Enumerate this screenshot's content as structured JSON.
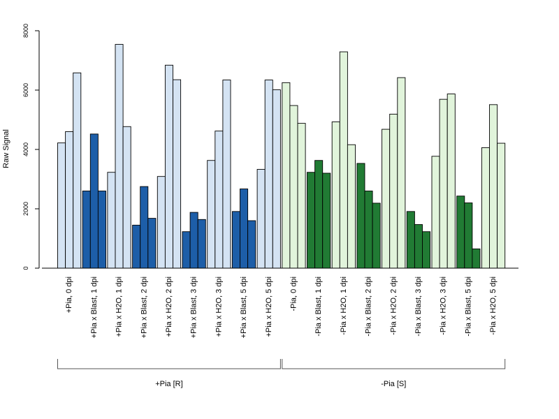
{
  "chart_data": {
    "type": "bar",
    "ylabel": "Raw Signal",
    "xlabel": "",
    "ylim": [
      0,
      8000
    ],
    "yticks": [
      0,
      2000,
      4000,
      6000,
      8000
    ],
    "ytick_labels": [
      "0",
      "2000",
      "4000",
      "6000",
      "8000"
    ],
    "grid": false,
    "legend": "none",
    "colors": {
      "pia_r_h2o": "#d4e3f3",
      "pia_r_blast": "#1d5ea8",
      "pia_s_h2o": "#e1f4db",
      "pia_s_blast": "#217b34",
      "stroke": "#000000"
    },
    "categories": [
      "+Pia, 0 dpi",
      "+Pia x Blast, 1 dpi",
      "+Pia x H2O, 1 dpi",
      "+Pia x Blast, 2 dpi",
      "+Pia x H2O, 2 dpi",
      "+Pia x Blast, 3 dpi",
      "+Pia x H2O, 3 dpi",
      "+Pia x Blast, 5 dpi",
      "+Pia x H2O, 5 dpi",
      "-Pia, 0 dpi",
      "-Pia x Blast, 1 dpi",
      "-Pia x H2O, 1 dpi",
      "-Pia x Blast, 2 dpi",
      "-Pia x H2O, 2 dpi",
      "-Pia x Blast, 3 dpi",
      "-Pia x H2O, 3 dpi",
      "-Pia x Blast, 5 dpi",
      "-Pia x H2O, 5 dpi"
    ],
    "bar_colors": [
      "pia_r_h2o",
      "pia_r_blast",
      "pia_r_h2o",
      "pia_r_blast",
      "pia_r_h2o",
      "pia_r_blast",
      "pia_r_h2o",
      "pia_r_blast",
      "pia_r_h2o",
      "pia_s_h2o",
      "pia_s_blast",
      "pia_s_h2o",
      "pia_s_blast",
      "pia_s_h2o",
      "pia_s_blast",
      "pia_s_h2o",
      "pia_s_blast",
      "pia_s_h2o"
    ],
    "values": [
      [
        4220,
        4600,
        6580
      ],
      [
        2600,
        4520,
        2600
      ],
      [
        3230,
        7540,
        4770
      ],
      [
        1450,
        2750,
        1680
      ],
      [
        3090,
        6840,
        6350
      ],
      [
        1230,
        1880,
        1640
      ],
      [
        3630,
        4620,
        6340
      ],
      [
        1910,
        2670,
        1600
      ],
      [
        3330,
        6340,
        6010
      ],
      [
        6250,
        5480,
        4880
      ],
      [
        3230,
        3630,
        3200
      ],
      [
        4930,
        7290,
        4160
      ],
      [
        3530,
        2600,
        2190
      ],
      [
        4680,
        5190,
        6420
      ],
      [
        1910,
        1470,
        1230
      ],
      [
        3770,
        5690,
        5870
      ],
      [
        2430,
        2200,
        650
      ],
      [
        4060,
        5510,
        4210
      ]
    ],
    "groups": [
      {
        "label": "+Pia [R]",
        "from": 0,
        "to": 8
      },
      {
        "label": "-Pia [S]",
        "from": 9,
        "to": 17
      }
    ]
  }
}
